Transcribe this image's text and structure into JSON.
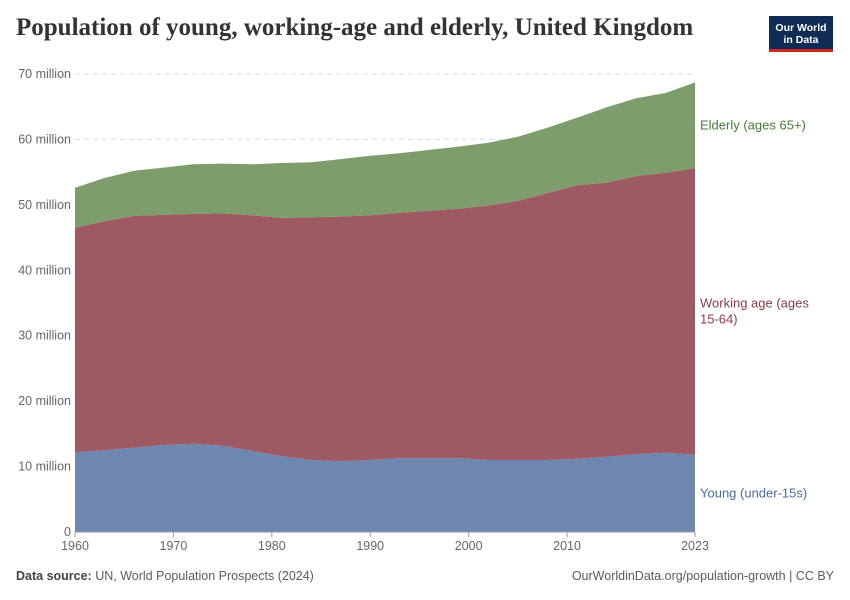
{
  "title": "Population of young, working-age and elderly, United Kingdom",
  "logo": {
    "line1": "Our World",
    "line2": "in Data"
  },
  "footer": {
    "source_label": "Data source:",
    "source_text": "UN, World Population Prospects (2024)",
    "right_text": "OurWorldinData.org/population-growth | CC BY"
  },
  "colors": {
    "young": "#6d87b1",
    "working": "#9e5a62",
    "elderly": "#7d9e6c",
    "young_label": "#4c6a9c",
    "working_label": "#8a3b46",
    "elderly_label": "#4a7a39"
  },
  "chart_data": {
    "type": "area",
    "stacked": true,
    "ylim": [
      0,
      70000000
    ],
    "y_ticks": [
      {
        "value": 0,
        "label": "0"
      },
      {
        "value": 10000000,
        "label": "10 million"
      },
      {
        "value": 20000000,
        "label": "20 million"
      },
      {
        "value": 30000000,
        "label": "30 million"
      },
      {
        "value": 40000000,
        "label": "40 million"
      },
      {
        "value": 50000000,
        "label": "50 million"
      },
      {
        "value": 60000000,
        "label": "60 million"
      },
      {
        "value": 70000000,
        "label": "70 million"
      }
    ],
    "x_ticks": [
      {
        "value": 1960,
        "label": "1960"
      },
      {
        "value": 1970,
        "label": "1970"
      },
      {
        "value": 1980,
        "label": "1980"
      },
      {
        "value": 1990,
        "label": "1990"
      },
      {
        "value": 2000,
        "label": "2000"
      },
      {
        "value": 2010,
        "label": "2010"
      },
      {
        "value": 2023,
        "label": "2023"
      }
    ],
    "xlim": [
      1960,
      2023
    ],
    "grid": "horizontal",
    "x": [
      1960,
      1963,
      1966,
      1969,
      1972,
      1975,
      1978,
      1981,
      1984,
      1987,
      1990,
      1993,
      1996,
      1999,
      2002,
      2005,
      2008,
      2011,
      2014,
      2017,
      2020,
      2023
    ],
    "series": [
      {
        "name": "Young (under-15s)",
        "key": "young",
        "values": [
          12.2,
          12.5,
          12.9,
          13.3,
          13.5,
          13.2,
          12.4,
          11.6,
          11.0,
          10.8,
          11.0,
          11.3,
          11.3,
          11.3,
          11.0,
          11.0,
          11.0,
          11.2,
          11.5,
          11.9,
          12.1,
          11.8
        ]
      },
      {
        "name": "Working age (ages 15-64)",
        "key": "working",
        "values": [
          34.3,
          35.0,
          35.4,
          35.2,
          35.1,
          35.5,
          36.0,
          36.4,
          37.1,
          37.4,
          37.4,
          37.5,
          37.8,
          38.1,
          38.9,
          39.6,
          40.8,
          41.8,
          41.9,
          42.5,
          42.8,
          43.8
        ]
      },
      {
        "name": "Elderly (ages 65+)",
        "key": "elderly",
        "values": [
          6.1,
          6.6,
          6.9,
          7.2,
          7.6,
          7.6,
          7.8,
          8.4,
          8.4,
          8.8,
          9.1,
          9.1,
          9.3,
          9.5,
          9.6,
          9.8,
          10.0,
          10.3,
          11.5,
          11.9,
          12.2,
          13.1
        ]
      }
    ],
    "series_unit_multiplier": 1000000,
    "end_labels": [
      {
        "key": "elderly",
        "lines": [
          "Elderly (ages 65+)"
        ]
      },
      {
        "key": "working",
        "lines": [
          "Working age (ages",
          "15-64)"
        ]
      },
      {
        "key": "young",
        "lines": [
          "Young (under-15s)"
        ]
      }
    ]
  }
}
